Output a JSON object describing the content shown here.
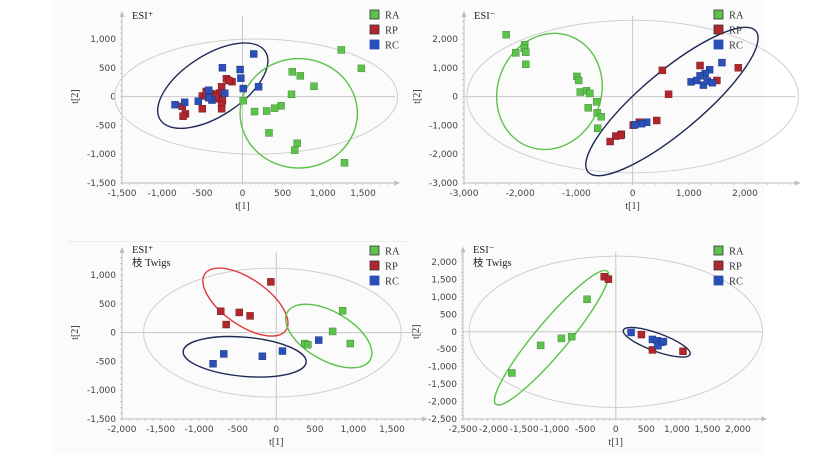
{
  "figure": {
    "group_colors": {
      "RA": "#5cc24a",
      "RP": "#b3262e",
      "RC": "#2a4fb8"
    },
    "ellipse_colors": {
      "RA": "#5cc24a",
      "RP": "#e03a3a",
      "RC": "#1f2a55",
      "hotelling": "#cfcfcf"
    }
  },
  "chart_data": [
    {
      "type": "scatter",
      "title": "ESI⁺",
      "subtitle": "",
      "xlabel": "t[1]",
      "ylabel": "t[2]",
      "xlim": [
        -1500,
        1900
      ],
      "ylim": [
        -1500,
        1400
      ],
      "xticks": [
        -1500,
        -1000,
        -500,
        0,
        500,
        1000,
        1500
      ],
      "xtick_labels": [
        "-1,500",
        "-1,000",
        "-500",
        "0",
        "500",
        "1,000",
        "1,500"
      ],
      "yticks": [
        1000,
        500,
        0,
        -500,
        -1000,
        -1500
      ],
      "ytick_labels": [
        "1,000",
        "500",
        "0",
        "-500",
        "-1,000",
        "-1,500"
      ],
      "legend": [
        "RA",
        "RP",
        "RC"
      ],
      "legend_position": "top-right",
      "series": [
        {
          "name": "RA",
          "points": [
            [
              1230,
              810
            ],
            [
              1480,
              490
            ],
            [
              620,
              430
            ],
            [
              720,
              360
            ],
            [
              890,
              180
            ],
            [
              610,
              40
            ],
            [
              10,
              -70
            ],
            [
              480,
              -160
            ],
            [
              400,
              -200
            ],
            [
              300,
              -250
            ],
            [
              150,
              -260
            ],
            [
              330,
              -630
            ],
            [
              680,
              -810
            ],
            [
              650,
              -930
            ],
            [
              1270,
              -1150
            ]
          ]
        },
        {
          "name": "RP",
          "points": [
            [
              -200,
              310
            ],
            [
              -130,
              260
            ],
            [
              -170,
              280
            ],
            [
              -260,
              170
            ],
            [
              -290,
              60
            ],
            [
              -340,
              40
            ],
            [
              -400,
              50
            ],
            [
              -450,
              90
            ],
            [
              -500,
              10
            ],
            [
              -300,
              -40
            ],
            [
              -250,
              -70
            ],
            [
              -260,
              -140
            ],
            [
              -500,
              -210
            ],
            [
              -750,
              -170
            ],
            [
              -710,
              -300
            ],
            [
              -740,
              -340
            ],
            [
              -260,
              -210
            ],
            [
              -330,
              0
            ],
            [
              -450,
              70
            ]
          ]
        },
        {
          "name": "RC",
          "points": [
            [
              140,
              740
            ],
            [
              -250,
              500
            ],
            [
              -30,
              470
            ],
            [
              -20,
              320
            ],
            [
              10,
              140
            ],
            [
              200,
              170
            ],
            [
              -220,
              60
            ],
            [
              -420,
              110
            ],
            [
              -380,
              -60
            ],
            [
              -550,
              -80
            ],
            [
              -720,
              -100
            ],
            [
              -840,
              -140
            ],
            [
              -420,
              -20
            ]
          ]
        }
      ],
      "ellipses": [
        {
          "group": "hotelling",
          "cx": 170,
          "cy": 0,
          "rx": 1760,
          "ry": 1000,
          "angle": 0
        },
        {
          "group": "RC",
          "cx": -370,
          "cy": 190,
          "rx": 780,
          "ry": 530,
          "angle": 33
        },
        {
          "group": "RA",
          "cx": 700,
          "cy": -290,
          "rx": 730,
          "ry": 950,
          "angle": 0
        }
      ]
    },
    {
      "type": "scatter",
      "title": "ESI⁻",
      "subtitle": "",
      "xlabel": "t[1]",
      "ylabel": "t[2]",
      "xlim": [
        -3000,
        2900
      ],
      "ylim": [
        -3000,
        2800
      ],
      "xticks": [
        -3000,
        -2000,
        -1000,
        0,
        1000,
        2000
      ],
      "xtick_labels": [
        "-3,000",
        "-2,000",
        "-1,000",
        "0",
        "1,000",
        "2,000"
      ],
      "yticks": [
        2000,
        1000,
        0,
        -1000,
        -2000,
        -3000
      ],
      "ytick_labels": [
        "2,000",
        "1,000",
        "0",
        "-1,000",
        "-2,000",
        "-3,000"
      ],
      "legend": [
        "RA",
        "RP",
        "RC"
      ],
      "legend_position": "top-right",
      "series": [
        {
          "name": "RA",
          "points": [
            [
              -2250,
              2150
            ],
            [
              -1920,
              1800
            ],
            [
              -1930,
              1680
            ],
            [
              -2080,
              1520
            ],
            [
              -1900,
              1540
            ],
            [
              -1900,
              1120
            ],
            [
              -990,
              700
            ],
            [
              -960,
              560
            ],
            [
              -930,
              160
            ],
            [
              -820,
              200
            ],
            [
              -760,
              110
            ],
            [
              -640,
              -180
            ],
            [
              -790,
              -390
            ],
            [
              -630,
              -560
            ],
            [
              -560,
              -700
            ],
            [
              -620,
              -1100
            ]
          ]
        },
        {
          "name": "RP",
          "points": [
            [
              530,
              910
            ],
            [
              1200,
              1080
            ],
            [
              1880,
              1000
            ],
            [
              1500,
              560
            ],
            [
              640,
              80
            ],
            [
              430,
              -830
            ],
            [
              120,
              -890
            ],
            [
              10,
              -990
            ],
            [
              -200,
              -1310
            ],
            [
              -300,
              -1370
            ],
            [
              -400,
              -1560
            ],
            [
              -210,
              -1350
            ]
          ]
        },
        {
          "name": "RC",
          "points": [
            [
              1590,
              1180
            ],
            [
              1370,
              930
            ],
            [
              1290,
              800
            ],
            [
              1200,
              720
            ],
            [
              1040,
              510
            ],
            [
              1140,
              560
            ],
            [
              1260,
              400
            ],
            [
              1330,
              540
            ],
            [
              1420,
              480
            ],
            [
              250,
              -890
            ],
            [
              160,
              -940
            ],
            [
              40,
              -980
            ]
          ]
        }
      ],
      "ellipses": [
        {
          "group": "hotelling",
          "cx": 0,
          "cy": 0,
          "rx": 2950,
          "ry": 2650,
          "angle": 0
        },
        {
          "group": "RA",
          "cx": -1480,
          "cy": 180,
          "rx": 920,
          "ry": 2050,
          "angle": -22
        },
        {
          "group": "RC",
          "cx": 700,
          "cy": -170,
          "rx": 1950,
          "ry": 1050,
          "angle": 40
        }
      ]
    },
    {
      "type": "scatter",
      "title": "ESI⁺",
      "subtitle": "枝 Twigs",
      "xlabel": "t[1]",
      "ylabel": "t[2]",
      "xlim": [
        -2000,
        1900
      ],
      "ylim": [
        -1500,
        1400
      ],
      "xticks": [
        -2000,
        -1500,
        -1000,
        -500,
        0,
        500,
        1000,
        1500
      ],
      "xtick_labels": [
        "-2,000",
        "-1,500",
        "-1,000",
        "-500",
        "0",
        "500",
        "1,000",
        "1,500"
      ],
      "yticks": [
        1000,
        500,
        0,
        -500,
        -1000,
        -1500
      ],
      "ytick_labels": [
        "1,000",
        "500",
        "0",
        "-500",
        "-1,000",
        "-1,500"
      ],
      "legend": [
        "RA",
        "RP",
        "RC"
      ],
      "legend_position": "top-right",
      "series": [
        {
          "name": "RA",
          "points": [
            [
              860,
              380
            ],
            [
              730,
              20
            ],
            [
              960,
              -190
            ],
            [
              370,
              -190
            ],
            [
              410,
              -210
            ]
          ]
        },
        {
          "name": "RP",
          "points": [
            [
              -70,
              880
            ],
            [
              -720,
              370
            ],
            [
              -480,
              350
            ],
            [
              -340,
              290
            ],
            [
              -650,
              140
            ]
          ]
        },
        {
          "name": "RC",
          "points": [
            [
              550,
              -130
            ],
            [
              80,
              -320
            ],
            [
              -180,
              -410
            ],
            [
              -680,
              -370
            ],
            [
              -820,
              -540
            ]
          ]
        }
      ],
      "ellipses": [
        {
          "group": "hotelling",
          "cx": -50,
          "cy": 0,
          "rx": 1670,
          "ry": 1120,
          "angle": 0
        },
        {
          "group": "RP",
          "cx": -400,
          "cy": 530,
          "rx": 640,
          "ry": 400,
          "angle": -35
        },
        {
          "group": "RA",
          "cx": 680,
          "cy": -60,
          "rx": 620,
          "ry": 420,
          "angle": -30
        },
        {
          "group": "RC",
          "cx": -410,
          "cy": -420,
          "rx": 800,
          "ry": 340,
          "angle": -5
        }
      ]
    },
    {
      "type": "scatter",
      "title": "ESI⁻",
      "subtitle": "枝 Twigs",
      "xlabel": "t[1]",
      "ylabel": "t[2]",
      "xlim": [
        -2500,
        2400
      ],
      "ylim": [
        -2500,
        2300
      ],
      "xticks": [
        -2500,
        -2000,
        -1500,
        -1000,
        -500,
        0,
        500,
        1000,
        1500,
        2000
      ],
      "xtick_labels": [
        "-2,500",
        "-2,000",
        "-1,500",
        "-1,000",
        "-500",
        "0",
        "500",
        "1,000",
        "1,500",
        "2,000"
      ],
      "yticks": [
        2000,
        1500,
        1000,
        500,
        0,
        -500,
        -1000,
        -1500,
        -2000,
        -2500
      ],
      "ytick_labels": [
        "2,000",
        "1,500",
        "1,000",
        "500",
        "0",
        "-500",
        "-1,000",
        "-1,500",
        "-2,000",
        "-2,500"
      ],
      "legend": [
        "RA",
        "RP",
        "RC"
      ],
      "legend_position": "top-right",
      "series": [
        {
          "name": "RA",
          "points": [
            [
              -470,
              930
            ],
            [
              -720,
              -140
            ],
            [
              -890,
              -190
            ],
            [
              -1230,
              -390
            ],
            [
              -1700,
              -1180
            ]
          ]
        },
        {
          "name": "RP",
          "points": [
            [
              -190,
              1580
            ],
            [
              -120,
              1510
            ],
            [
              420,
              -80
            ],
            [
              600,
              -520
            ],
            [
              1100,
              -560
            ]
          ]
        },
        {
          "name": "RC",
          "points": [
            [
              250,
              -20
            ],
            [
              600,
              -220
            ],
            [
              680,
              -260
            ],
            [
              740,
              -300
            ],
            [
              690,
              -400
            ],
            [
              780,
              -280
            ]
          ]
        }
      ],
      "ellipses": [
        {
          "group": "hotelling",
          "cx": 0,
          "cy": 0,
          "rx": 2400,
          "ry": 2170,
          "angle": 0
        },
        {
          "group": "RA",
          "cx": -1050,
          "cy": -170,
          "rx": 1420,
          "ry": 460,
          "angle": 50
        },
        {
          "group": "RC",
          "cx": 670,
          "cy": -300,
          "rx": 580,
          "ry": 260,
          "angle": -20
        }
      ]
    }
  ]
}
